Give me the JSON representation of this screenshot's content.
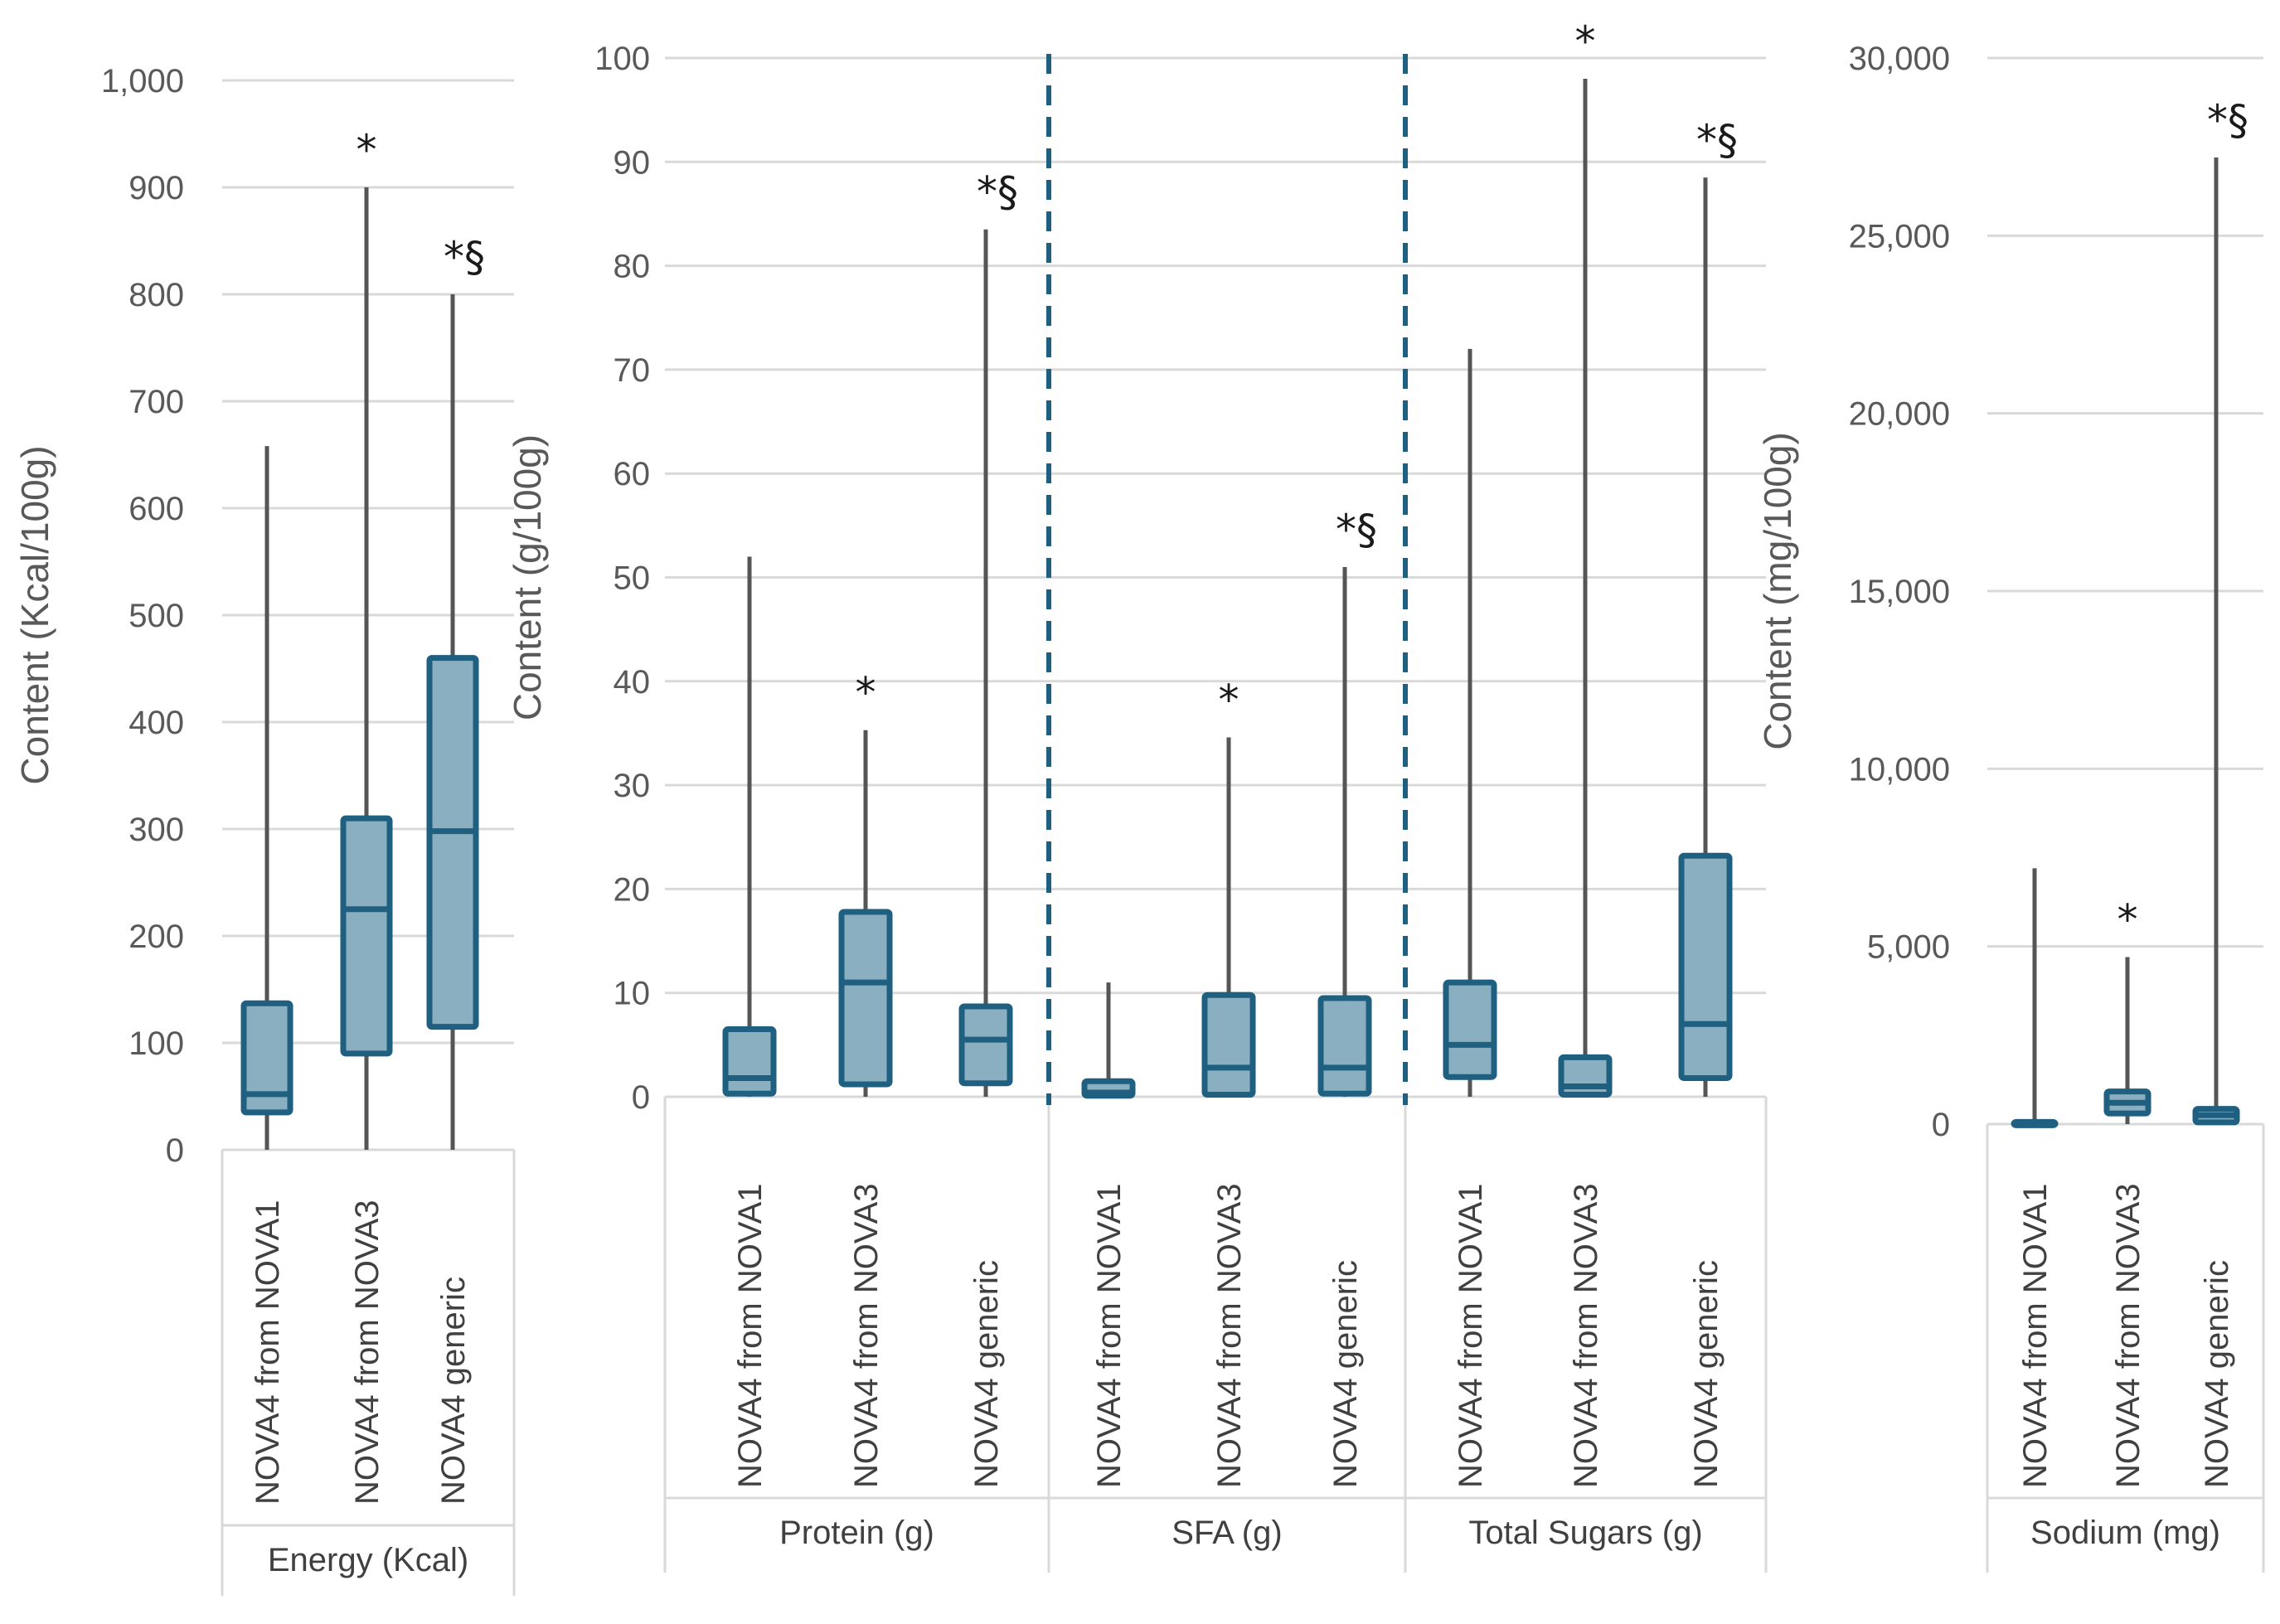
{
  "colors": {
    "box_fill": "#8aafc0",
    "box_stroke": "#1f5f80",
    "whisker": "#555555",
    "grid": "#d9d9d9",
    "divider": "#1f5f80",
    "text": "#595959"
  },
  "chart_data": [
    {
      "type": "boxplot",
      "ylabel": "Content (Kcal/100g)",
      "ylim": [
        0,
        1000
      ],
      "yticks": [
        0,
        100,
        200,
        300,
        400,
        500,
        600,
        700,
        800,
        900,
        1000
      ],
      "ytick_labels": [
        "0",
        "100",
        "200",
        "300",
        "400",
        "500",
        "600",
        "700",
        "800",
        "900",
        "1,000"
      ],
      "groups": [
        {
          "name": "Energy (Kcal)",
          "categories": [
            "NOVA4 from NOVA1",
            "NOVA4 from NOVA3",
            "NOVA4 generic"
          ],
          "boxes": [
            {
              "min": 0,
              "q1": 35,
              "median": 52,
              "q3": 137,
              "max": 658,
              "sig": ""
            },
            {
              "min": 0,
              "q1": 90,
              "median": 225,
              "q3": 310,
              "max": 900,
              "sig": "*"
            },
            {
              "min": 0,
              "q1": 115,
              "median": 298,
              "q3": 460,
              "max": 800,
              "sig": "*§"
            }
          ]
        }
      ]
    },
    {
      "type": "boxplot",
      "ylabel": "Content (g/100g)",
      "ylim": [
        0,
        100
      ],
      "yticks": [
        0,
        10,
        20,
        30,
        40,
        50,
        60,
        70,
        80,
        90,
        100
      ],
      "ytick_labels": [
        "0",
        "10",
        "20",
        "30",
        "40",
        "50",
        "60",
        "70",
        "80",
        "90",
        "100"
      ],
      "groups": [
        {
          "name": "Protein (g)",
          "categories": [
            "NOVA4 from NOVA1",
            "NOVA4 from NOVA3",
            "NOVA4 generic"
          ],
          "boxes": [
            {
              "min": 0,
              "q1": 0.3,
              "median": 1.8,
              "q3": 6.5,
              "max": 52,
              "sig": ""
            },
            {
              "min": 0,
              "q1": 1.2,
              "median": 11,
              "q3": 17.8,
              "max": 35.3,
              "sig": "*"
            },
            {
              "min": 0,
              "q1": 1.3,
              "median": 5.5,
              "q3": 8.7,
              "max": 83.5,
              "sig": "*§"
            }
          ]
        },
        {
          "name": "SFA (g)",
          "categories": [
            "NOVA4 from NOVA1",
            "NOVA4 from NOVA3",
            "NOVA4 generic"
          ],
          "boxes": [
            {
              "min": 0,
              "q1": 0.1,
              "median": 0.4,
              "q3": 1.5,
              "max": 11,
              "sig": ""
            },
            {
              "min": 0,
              "q1": 0.2,
              "median": 2.8,
              "q3": 9.8,
              "max": 34.6,
              "sig": "*"
            },
            {
              "min": 0,
              "q1": 0.3,
              "median": 2.8,
              "q3": 9.5,
              "max": 51,
              "sig": "*§"
            }
          ]
        },
        {
          "name": "Total Sugars (g)",
          "categories": [
            "NOVA4 from NOVA1",
            "NOVA4 from NOVA3",
            "NOVA4 generic"
          ],
          "boxes": [
            {
              "min": 0,
              "q1": 1.9,
              "median": 5,
              "q3": 11,
              "max": 72,
              "sig": ""
            },
            {
              "min": 0,
              "q1": 0.2,
              "median": 1,
              "q3": 3.8,
              "max": 98,
              "sig": "*"
            },
            {
              "min": 0,
              "q1": 1.8,
              "median": 7,
              "q3": 23.2,
              "max": 88.5,
              "sig": "*§"
            }
          ]
        }
      ],
      "dividers_after_groups": [
        0,
        1
      ]
    },
    {
      "type": "boxplot",
      "ylabel": "Content (mg/100g)",
      "ylim": [
        0,
        30000
      ],
      "yticks": [
        0,
        5000,
        10000,
        15000,
        20000,
        25000,
        30000
      ],
      "ytick_labels": [
        "0",
        "5,000",
        "10,000",
        "15,000",
        "20,000",
        "25,000",
        "30,000"
      ],
      "groups": [
        {
          "name": "Sodium (mg)",
          "categories": [
            "NOVA4 from NOVA1",
            "NOVA4 from NOVA3",
            "NOVA4 generic"
          ],
          "boxes": [
            {
              "min": 0,
              "q1": 0,
              "median": 20,
              "q3": 60,
              "max": 7200,
              "sig": ""
            },
            {
              "min": 0,
              "q1": 300,
              "median": 600,
              "q3": 920,
              "max": 4700,
              "sig": "*"
            },
            {
              "min": 0,
              "q1": 50,
              "median": 250,
              "q3": 430,
              "max": 27200,
              "sig": "*§"
            }
          ]
        }
      ]
    }
  ]
}
